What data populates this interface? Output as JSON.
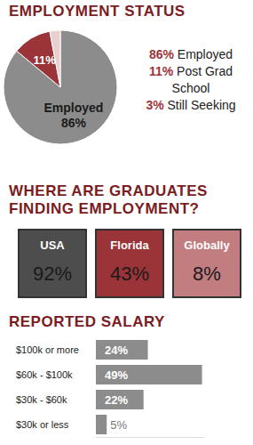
{
  "chart_data": [
    {
      "type": "pie",
      "title": "EMPLOYMENT STATUS",
      "categories": [
        "Employed",
        "Post Grad School",
        "Still Seeking"
      ],
      "values": [
        86,
        11,
        3
      ],
      "value_labels": [
        "86%",
        "11%",
        "3%"
      ],
      "slice_labels": [
        "Employed\n86%",
        "11%",
        null
      ],
      "colors": [
        "#8c8c8c",
        "#9b3438",
        "#e8cfd0"
      ],
      "data_labels": true,
      "legend": "right"
    },
    {
      "type": "bar",
      "orientation": "horizontal",
      "title": "REPORTED SALARY",
      "categories": [
        "$100k or more",
        "$60k - $100k",
        "$30k - $60k",
        "$30k or less"
      ],
      "values": [
        24,
        49,
        22,
        5
      ],
      "value_labels": [
        "24%",
        "49%",
        "22%",
        "5%"
      ],
      "color": "#8c8c8c",
      "xlim": [
        0,
        50
      ],
      "data_labels": true,
      "tick_labels": "y",
      "grid": false
    }
  ],
  "employment_locations": {
    "title": "WHERE ARE GRADUATES FINDING EMPLOYMENT?",
    "boxes": [
      {
        "label": "USA",
        "value": "92%",
        "color": "#4d4d4d"
      },
      {
        "label": "Florida",
        "value": "43%",
        "color": "#9b3438"
      },
      {
        "label": "Globally",
        "value": "8%",
        "color": "#c27d80"
      }
    ]
  }
}
